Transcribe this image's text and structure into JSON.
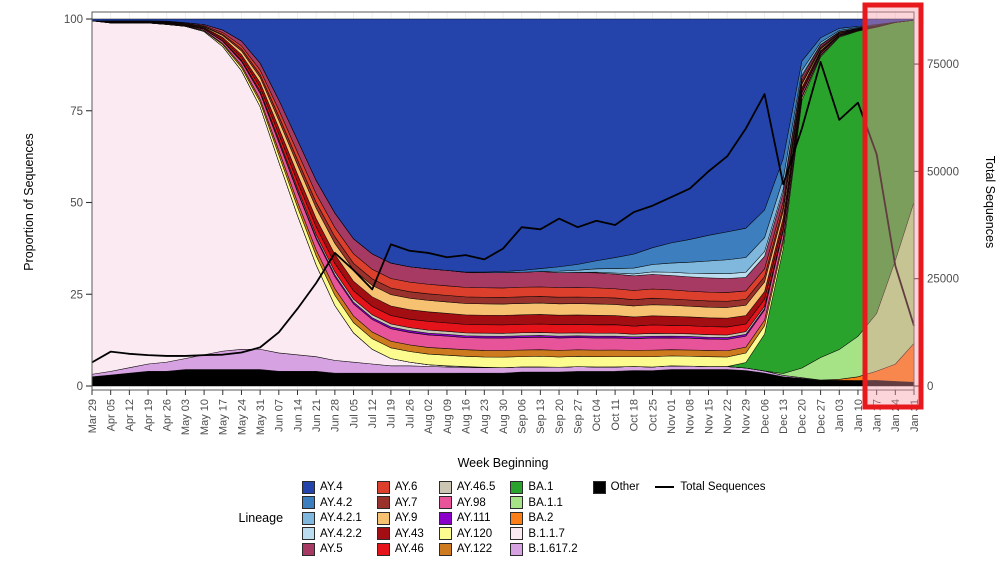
{
  "figure": {
    "left_axis": {
      "title": "Proportion of Sequences",
      "ticks": [
        0,
        25,
        50,
        75,
        100
      ]
    },
    "right_axis": {
      "title": "Total Sequences",
      "ticks": [
        0,
        25000,
        50000,
        75000
      ],
      "max": 85500
    },
    "x_axis": {
      "title": "Week Beginning"
    },
    "highlight": {
      "weeks": [
        "Jan 17",
        "Jan 24",
        "Jan 31"
      ],
      "stroke": "#E8191C",
      "fill": "rgba(246,150,162,0.40)"
    }
  },
  "chart_data": {
    "type": "area",
    "stacked": true,
    "title": "",
    "xlabel": "Week Beginning",
    "ylabel": "Proportion of Sequences",
    "y2label": "Total Sequences",
    "ylim": [
      0,
      100
    ],
    "y2lim": [
      0,
      85500
    ],
    "legend_position": "bottom",
    "categories": [
      "Mar 29",
      "Apr 05",
      "Apr 12",
      "Apr 19",
      "Apr 26",
      "May 03",
      "May 10",
      "May 17",
      "May 24",
      "May 31",
      "Jun 07",
      "Jun 14",
      "Jun 21",
      "Jun 28",
      "Jul 05",
      "Jul 12",
      "Jul 19",
      "Jul 26",
      "Aug 02",
      "Aug 09",
      "Aug 16",
      "Aug 23",
      "Aug 30",
      "Sep 06",
      "Sep 13",
      "Sep 20",
      "Sep 27",
      "Oct 04",
      "Oct 11",
      "Oct 18",
      "Oct 25",
      "Nov 01",
      "Nov 08",
      "Nov 15",
      "Nov 22",
      "Nov 29",
      "Dec 06",
      "Dec 13",
      "Dec 20",
      "Dec 27",
      "Jan 03",
      "Jan 10",
      "Jan 17",
      "Jan 24",
      "Jan 31"
    ],
    "series": [
      {
        "name": "Other",
        "color": "#000000",
        "values": [
          2.5,
          3,
          3.5,
          4,
          4,
          4.5,
          4.5,
          4.5,
          4.5,
          4.5,
          4,
          4,
          4,
          3.5,
          3.5,
          3.5,
          3.5,
          3.5,
          3.5,
          3.5,
          3.5,
          3.5,
          3.5,
          3.8,
          3.8,
          3.8,
          4,
          4,
          4,
          4.2,
          4.2,
          4.5,
          4.5,
          4.5,
          4.5,
          4.2,
          3.5,
          2.5,
          2,
          1.5,
          1.5,
          1.5,
          1.5,
          1.2,
          1
        ]
      },
      {
        "name": "B.1.617.2",
        "color": "#D6A2E2",
        "values": [
          0.7,
          1,
          1.5,
          2,
          2.5,
          3,
          4,
          5,
          5.5,
          5.5,
          5,
          4.5,
          4,
          3.5,
          3,
          2.5,
          2,
          2,
          1.8,
          1.7,
          1.6,
          1.5,
          1.5,
          1.4,
          1.4,
          1.3,
          1.3,
          1.2,
          1.2,
          1.1,
          1,
          1,
          0.9,
          0.8,
          0.8,
          0.7,
          0.6,
          0.4,
          0.2,
          0.1,
          0,
          0,
          0,
          0,
          0
        ]
      },
      {
        "name": "B.1.1.7",
        "color": "#FBEAF2",
        "values": [
          96,
          95,
          94,
          93,
          92,
          90.5,
          88,
          83,
          76,
          66,
          52,
          38,
          25,
          15,
          8,
          4,
          2,
          1,
          0.5,
          0.3,
          0.2,
          0.1,
          0,
          0,
          0,
          0,
          0,
          0,
          0,
          0,
          0,
          0,
          0,
          0,
          0,
          0,
          0,
          0,
          0,
          0,
          0,
          0,
          0,
          0,
          0
        ]
      },
      {
        "name": "BA.2",
        "color": "#FB7E17",
        "values": [
          0,
          0,
          0,
          0,
          0,
          0,
          0,
          0,
          0,
          0,
          0,
          0,
          0,
          0,
          0,
          0,
          0,
          0,
          0,
          0,
          0,
          0,
          0,
          0,
          0,
          0,
          0,
          0,
          0,
          0,
          0,
          0,
          0,
          0,
          0,
          0,
          0,
          0,
          0,
          0,
          0.3,
          1,
          2.5,
          4.5,
          10.5
        ]
      },
      {
        "name": "BA.1.1",
        "color": "#A6E387",
        "values": [
          0,
          0,
          0,
          0,
          0,
          0,
          0,
          0,
          0,
          0,
          0,
          0,
          0,
          0,
          0,
          0,
          0,
          0,
          0,
          0,
          0,
          0,
          0,
          0,
          0,
          0,
          0,
          0,
          0,
          0,
          0,
          0,
          0,
          0,
          0,
          0,
          0,
          0.5,
          2.5,
          6,
          8,
          11,
          15.5,
          27,
          38
        ]
      },
      {
        "name": "BA.1",
        "color": "#2AA32D",
        "values": [
          0,
          0,
          0,
          0,
          0,
          0,
          0,
          0,
          0,
          0,
          0,
          0,
          0,
          0,
          0,
          0,
          0,
          0,
          0,
          0,
          0,
          0,
          0,
          0,
          0,
          0,
          0,
          0,
          0,
          0,
          0,
          0,
          0,
          0,
          0,
          1.5,
          10,
          34,
          70,
          80,
          84,
          83,
          77,
          62,
          49
        ]
      },
      {
        "name": "AY.120",
        "color": "#FBFB90",
        "values": [
          0,
          0.1,
          0.1,
          0.1,
          0.1,
          0.1,
          0.2,
          0.5,
          0.9,
          1.3,
          1.9,
          2.3,
          2.5,
          2.8,
          2.8,
          2.9,
          2.9,
          2.9,
          2.9,
          2.9,
          2.8,
          2.8,
          2.9,
          2.8,
          2.9,
          2.8,
          2.8,
          2.8,
          2.8,
          2.7,
          2.8,
          2.7,
          2.7,
          2.7,
          2.6,
          2.6,
          2.3,
          1.7,
          0.7,
          0.3,
          0.2,
          0.1,
          0.1,
          0,
          0
        ]
      },
      {
        "name": "AY.122",
        "color": "#CE7A1E",
        "values": [
          0,
          0,
          0,
          0,
          0.1,
          0.1,
          0.1,
          0.3,
          0.6,
          0.8,
          1.2,
          1.4,
          1.6,
          1.8,
          1.8,
          1.8,
          1.8,
          1.8,
          1.8,
          1.8,
          1.8,
          1.8,
          1.8,
          1.8,
          1.8,
          1.8,
          1.8,
          1.8,
          1.8,
          1.7,
          1.8,
          1.7,
          1.7,
          1.7,
          1.7,
          1.6,
          1.5,
          1.1,
          0.4,
          0.2,
          0.1,
          0.1,
          0,
          0,
          0
        ]
      },
      {
        "name": "AY.98",
        "color": "#E7549A",
        "values": [
          0,
          0.1,
          0.1,
          0.1,
          0.1,
          0.1,
          0.3,
          0.6,
          1,
          1.6,
          2.2,
          2.7,
          3,
          3.3,
          3.3,
          3.4,
          3.4,
          3.4,
          3.4,
          3.4,
          3.3,
          3.4,
          3.4,
          3.4,
          3.4,
          3.4,
          3.3,
          3.3,
          3.3,
          3.2,
          3.3,
          3.2,
          3.2,
          3.1,
          3.1,
          3,
          2.8,
          2,
          0.8,
          0.4,
          0.2,
          0.1,
          0.1,
          0,
          0
        ]
      },
      {
        "name": "AY.111",
        "color": "#8A00C8",
        "values": [
          0,
          0,
          0,
          0,
          0,
          0,
          0,
          0.1,
          0.2,
          0.2,
          0.3,
          0.4,
          0.5,
          0.5,
          0.5,
          0.5,
          0.5,
          0.5,
          0.5,
          0.5,
          0.5,
          0.5,
          0.5,
          0.5,
          0.5,
          0.5,
          0.5,
          0.5,
          0.5,
          0.5,
          0.5,
          0.5,
          0.5,
          0.5,
          0.5,
          0.5,
          0.4,
          0.3,
          0.1,
          0.1,
          0,
          0,
          0,
          0,
          0
        ]
      },
      {
        "name": "AY.46.5",
        "color": "#CBC5B3",
        "values": [
          0,
          0,
          0,
          0,
          0,
          0,
          0.1,
          0.1,
          0.2,
          0.4,
          0.5,
          0.6,
          0.7,
          0.8,
          0.8,
          0.8,
          0.8,
          0.8,
          0.8,
          0.8,
          0.8,
          0.8,
          0.8,
          0.8,
          0.8,
          0.8,
          0.8,
          0.8,
          0.8,
          0.7,
          0.8,
          0.7,
          0.7,
          0.7,
          0.7,
          0.7,
          0.6,
          0.5,
          0.2,
          0.1,
          0,
          0,
          0,
          0,
          0
        ]
      },
      {
        "name": "AY.46",
        "color": "#E5131A",
        "values": [
          0,
          0,
          0,
          0,
          0.1,
          0.1,
          0.2,
          0.4,
          0.7,
          1.1,
          1.5,
          1.8,
          2.1,
          2.3,
          2.3,
          2.3,
          2.3,
          2.3,
          2.4,
          2.3,
          2.3,
          2.3,
          2.3,
          2.3,
          2.3,
          2.3,
          2.3,
          2.3,
          2.3,
          2.2,
          2.3,
          2.2,
          2.2,
          2.2,
          2.2,
          2.1,
          1.9,
          1.4,
          0.6,
          0.3,
          0.1,
          0.1,
          0,
          0,
          0
        ]
      },
      {
        "name": "AY.43",
        "color": "#A30E13",
        "values": [
          0,
          0.1,
          0.1,
          0.1,
          0.1,
          0.1,
          0.2,
          0.5,
          0.8,
          1.2,
          1.7,
          2.1,
          2.3,
          2.5,
          2.6,
          2.6,
          2.6,
          2.6,
          2.6,
          2.6,
          2.6,
          2.6,
          2.6,
          2.6,
          2.6,
          2.6,
          2.6,
          2.6,
          2.5,
          2.5,
          2.5,
          2.5,
          2.4,
          2.4,
          2.4,
          2.3,
          2.1,
          1.5,
          0.6,
          0.3,
          0.1,
          0.1,
          0,
          0,
          0
        ]
      },
      {
        "name": "AY.9",
        "color": "#F6C171",
        "values": [
          0,
          0.1,
          0.1,
          0.1,
          0.1,
          0.1,
          0.2,
          0.5,
          1,
          1.4,
          2,
          2.5,
          2.8,
          3,
          3.1,
          3.1,
          3.1,
          3.1,
          3.1,
          3.1,
          3.1,
          3.1,
          3.1,
          3.1,
          3.1,
          3.1,
          3.1,
          3.1,
          3,
          3,
          3,
          3,
          2.9,
          2.9,
          2.9,
          2.8,
          2.6,
          1.8,
          0.8,
          0.4,
          0.2,
          0.1,
          0.1,
          0,
          0
        ]
      },
      {
        "name": "AY.7",
        "color": "#99312C",
        "values": [
          0,
          0,
          0,
          0,
          0.1,
          0.1,
          0.1,
          0.3,
          0.6,
          0.8,
          1.2,
          1.4,
          1.6,
          1.8,
          1.8,
          1.8,
          1.8,
          1.8,
          1.8,
          1.8,
          1.8,
          1.8,
          1.8,
          1.8,
          1.8,
          1.8,
          1.8,
          1.8,
          1.8,
          1.7,
          1.8,
          1.7,
          1.7,
          1.7,
          1.7,
          1.6,
          1.5,
          1.1,
          0.4,
          0.2,
          0.1,
          0,
          0,
          0,
          0
        ]
      },
      {
        "name": "AY.6",
        "color": "#DC402C",
        "values": [
          0,
          0.1,
          0.1,
          0.1,
          0.1,
          0.1,
          0.2,
          0.5,
          0.8,
          1.2,
          1.7,
          2.1,
          2.3,
          2.5,
          2.6,
          2.6,
          2.6,
          2.6,
          2.6,
          2.6,
          2.6,
          2.6,
          2.6,
          2.6,
          2.6,
          2.6,
          2.6,
          2.6,
          2.5,
          2.5,
          2.5,
          2.5,
          2.4,
          2.4,
          2.4,
          2.3,
          2.1,
          1.5,
          0.6,
          0.3,
          0.2,
          0.1,
          0,
          0,
          0
        ]
      },
      {
        "name": "AY.5",
        "color": "#A73A62",
        "values": [
          0,
          0.1,
          0.1,
          0.1,
          0.1,
          0.2,
          0.3,
          0.7,
          1.3,
          1.9,
          2.7,
          3.3,
          3.7,
          4,
          4.1,
          4.2,
          4.2,
          4.2,
          4.2,
          4.2,
          4.1,
          4.1,
          4.2,
          4.1,
          4.2,
          4.1,
          4.1,
          4.1,
          4,
          4,
          4,
          3.9,
          3.9,
          3.9,
          3.8,
          3.7,
          3.4,
          2.4,
          1,
          0.5,
          0.2,
          0.1,
          0.1,
          0,
          0
        ]
      },
      {
        "name": "AY.4.2.2",
        "color": "#BBDDEF",
        "values": [
          0,
          0,
          0,
          0,
          0,
          0,
          0,
          0,
          0,
          0,
          0,
          0,
          0,
          0,
          0,
          0,
          0,
          0,
          0,
          0,
          0,
          0,
          0,
          0,
          0,
          0,
          0,
          0.2,
          0.3,
          0.5,
          0.7,
          0.9,
          1,
          1.2,
          1.3,
          1.4,
          1.3,
          1,
          0.4,
          0.2,
          0.1,
          0,
          0,
          0,
          0
        ]
      },
      {
        "name": "AY.4.2.1",
        "color": "#7FB8DC",
        "values": [
          0,
          0,
          0,
          0,
          0,
          0,
          0,
          0,
          0,
          0,
          0,
          0,
          0,
          0,
          0,
          0,
          0,
          0,
          0,
          0,
          0,
          0,
          0,
          0,
          0,
          0.4,
          0.6,
          0.9,
          1.2,
          1.6,
          2,
          2.5,
          3,
          3.4,
          3.8,
          4,
          3.8,
          2.8,
          1.2,
          0.6,
          0.3,
          0.2,
          0.1,
          0,
          0
        ]
      },
      {
        "name": "AY.4.2",
        "color": "#3D7EBE",
        "values": [
          0,
          0,
          0,
          0,
          0,
          0,
          0,
          0,
          0,
          0,
          0,
          0,
          0,
          0,
          0,
          0,
          0,
          0,
          0,
          0,
          0.1,
          0.2,
          0.3,
          0.5,
          0.8,
          1.2,
          1.6,
          2.2,
          3,
          3.8,
          4.6,
          5.5,
          6.2,
          7,
          7.6,
          8,
          7.5,
          5.5,
          2.5,
          1.2,
          0.6,
          0.3,
          0.2,
          0.1,
          0
        ]
      },
      {
        "name": "AY.4",
        "color": "#2444AC",
        "values": [
          0.5,
          0.5,
          0.5,
          0.5,
          0.6,
          1,
          1.5,
          3,
          6,
          12,
          22,
          33,
          44,
          53,
          60,
          64,
          66.5,
          67.5,
          68,
          68.5,
          69,
          69,
          69,
          68.5,
          68,
          67.5,
          67,
          66,
          65,
          64,
          62.5,
          61,
          60,
          59,
          58,
          57,
          52,
          38,
          11,
          5,
          2.5,
          2,
          1.5,
          0.8,
          0.3
        ]
      }
    ],
    "line_series": {
      "name": "Total Sequences",
      "color": "#000000",
      "values": [
        5500,
        8000,
        7500,
        7200,
        7000,
        7000,
        7200,
        7300,
        7800,
        9000,
        12500,
        18000,
        24000,
        31000,
        27000,
        22500,
        33000,
        31500,
        31000,
        30000,
        30500,
        29500,
        32000,
        37000,
        36500,
        39000,
        37000,
        38500,
        37500,
        40500,
        42000,
        44000,
        46000,
        50000,
        53500,
        60000,
        68000,
        47000,
        60000,
        75500,
        62000,
        66000,
        54000,
        28000,
        14000
      ]
    }
  },
  "legend": {
    "title": "Lineage",
    "columns": [
      [
        "AY.4",
        "AY.4.2",
        "AY.4.2.1",
        "AY.4.2.2",
        "AY.5"
      ],
      [
        "AY.6",
        "AY.7",
        "AY.9",
        "AY.43",
        "AY.46"
      ],
      [
        "AY.46.5",
        "AY.98",
        "AY.111",
        "AY.120",
        "AY.122"
      ],
      [
        "BA.1",
        "BA.1.1",
        "BA.2",
        "B.1.1.7",
        "B.1.617.2"
      ]
    ],
    "other_label": "Other",
    "line_label": "Total Sequences"
  }
}
